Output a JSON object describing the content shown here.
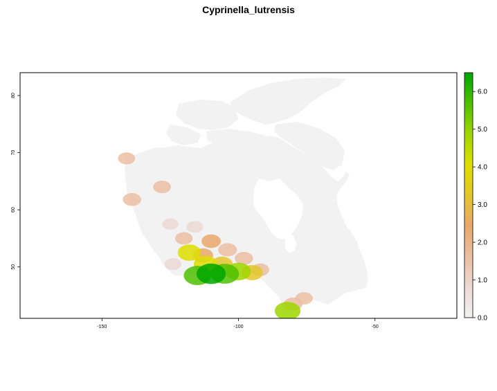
{
  "title": "Cyprinella_lutrensis",
  "chart_data": {
    "type": "heatmap",
    "title": "Cyprinella_lutrensis",
    "xlabel": "",
    "ylabel": "",
    "xlim": [
      -180,
      -20
    ],
    "ylim": [
      41,
      84
    ],
    "x_ticks": [
      -150,
      -100,
      -50
    ],
    "x_tick_labels": [
      "-150",
      "-100",
      "-50"
    ],
    "y_ticks": [
      50,
      60,
      70,
      80
    ],
    "y_tick_labels": [
      "50",
      "60",
      "70",
      "80"
    ],
    "legend": {
      "placement": "right",
      "min": 0,
      "max": 6.5,
      "ticks": [
        0.0,
        1.0,
        2.0,
        3.0,
        4.0,
        5.0,
        6.0
      ],
      "tick_labels": [
        "0.0",
        "1.0",
        "2.0",
        "3.0",
        "4.0",
        "5.0",
        "6.0"
      ],
      "colors": [
        "#f2f2f2",
        "#ecd9d4",
        "#ebbea2",
        "#e9a86c",
        "#e4c62b",
        "#dede00",
        "#9fd600",
        "#4fc000",
        "#00a600"
      ]
    },
    "background_color": "#f2f2f2",
    "grid": false,
    "hotspots": [
      {
        "lon": -115,
        "lat": 48.5,
        "value": 5.5
      },
      {
        "lon": -110,
        "lat": 48.8,
        "value": 6.2
      },
      {
        "lon": -105,
        "lat": 48.8,
        "value": 5.8
      },
      {
        "lon": -100,
        "lat": 49.2,
        "value": 4.5
      },
      {
        "lon": -95,
        "lat": 49.0,
        "value": 3.2
      },
      {
        "lon": -112,
        "lat": 50.5,
        "value": 4.0
      },
      {
        "lon": -106,
        "lat": 50.5,
        "value": 3.0
      },
      {
        "lon": -118,
        "lat": 52.5,
        "value": 3.8
      },
      {
        "lon": -113,
        "lat": 52.0,
        "value": 2.6
      },
      {
        "lon": -110,
        "lat": 54.5,
        "value": 2.2
      },
      {
        "lon": -104,
        "lat": 53.0,
        "value": 2.0
      },
      {
        "lon": -98,
        "lat": 51.5,
        "value": 1.8
      },
      {
        "lon": -92,
        "lat": 49.5,
        "value": 1.6
      },
      {
        "lon": -120,
        "lat": 55.0,
        "value": 1.5
      },
      {
        "lon": -116,
        "lat": 57.0,
        "value": 1.2
      },
      {
        "lon": -125,
        "lat": 57.5,
        "value": 0.9
      },
      {
        "lon": -124,
        "lat": 50.5,
        "value": 1.2
      },
      {
        "lon": -139,
        "lat": 61.8,
        "value": 1.8
      },
      {
        "lon": -128,
        "lat": 64.0,
        "value": 1.6
      },
      {
        "lon": -141,
        "lat": 69.0,
        "value": 1.3
      },
      {
        "lon": -82,
        "lat": 42.3,
        "value": 4.8
      },
      {
        "lon": -80,
        "lat": 43.5,
        "value": 2.0
      },
      {
        "lon": -76,
        "lat": 44.5,
        "value": 1.5
      }
    ]
  }
}
